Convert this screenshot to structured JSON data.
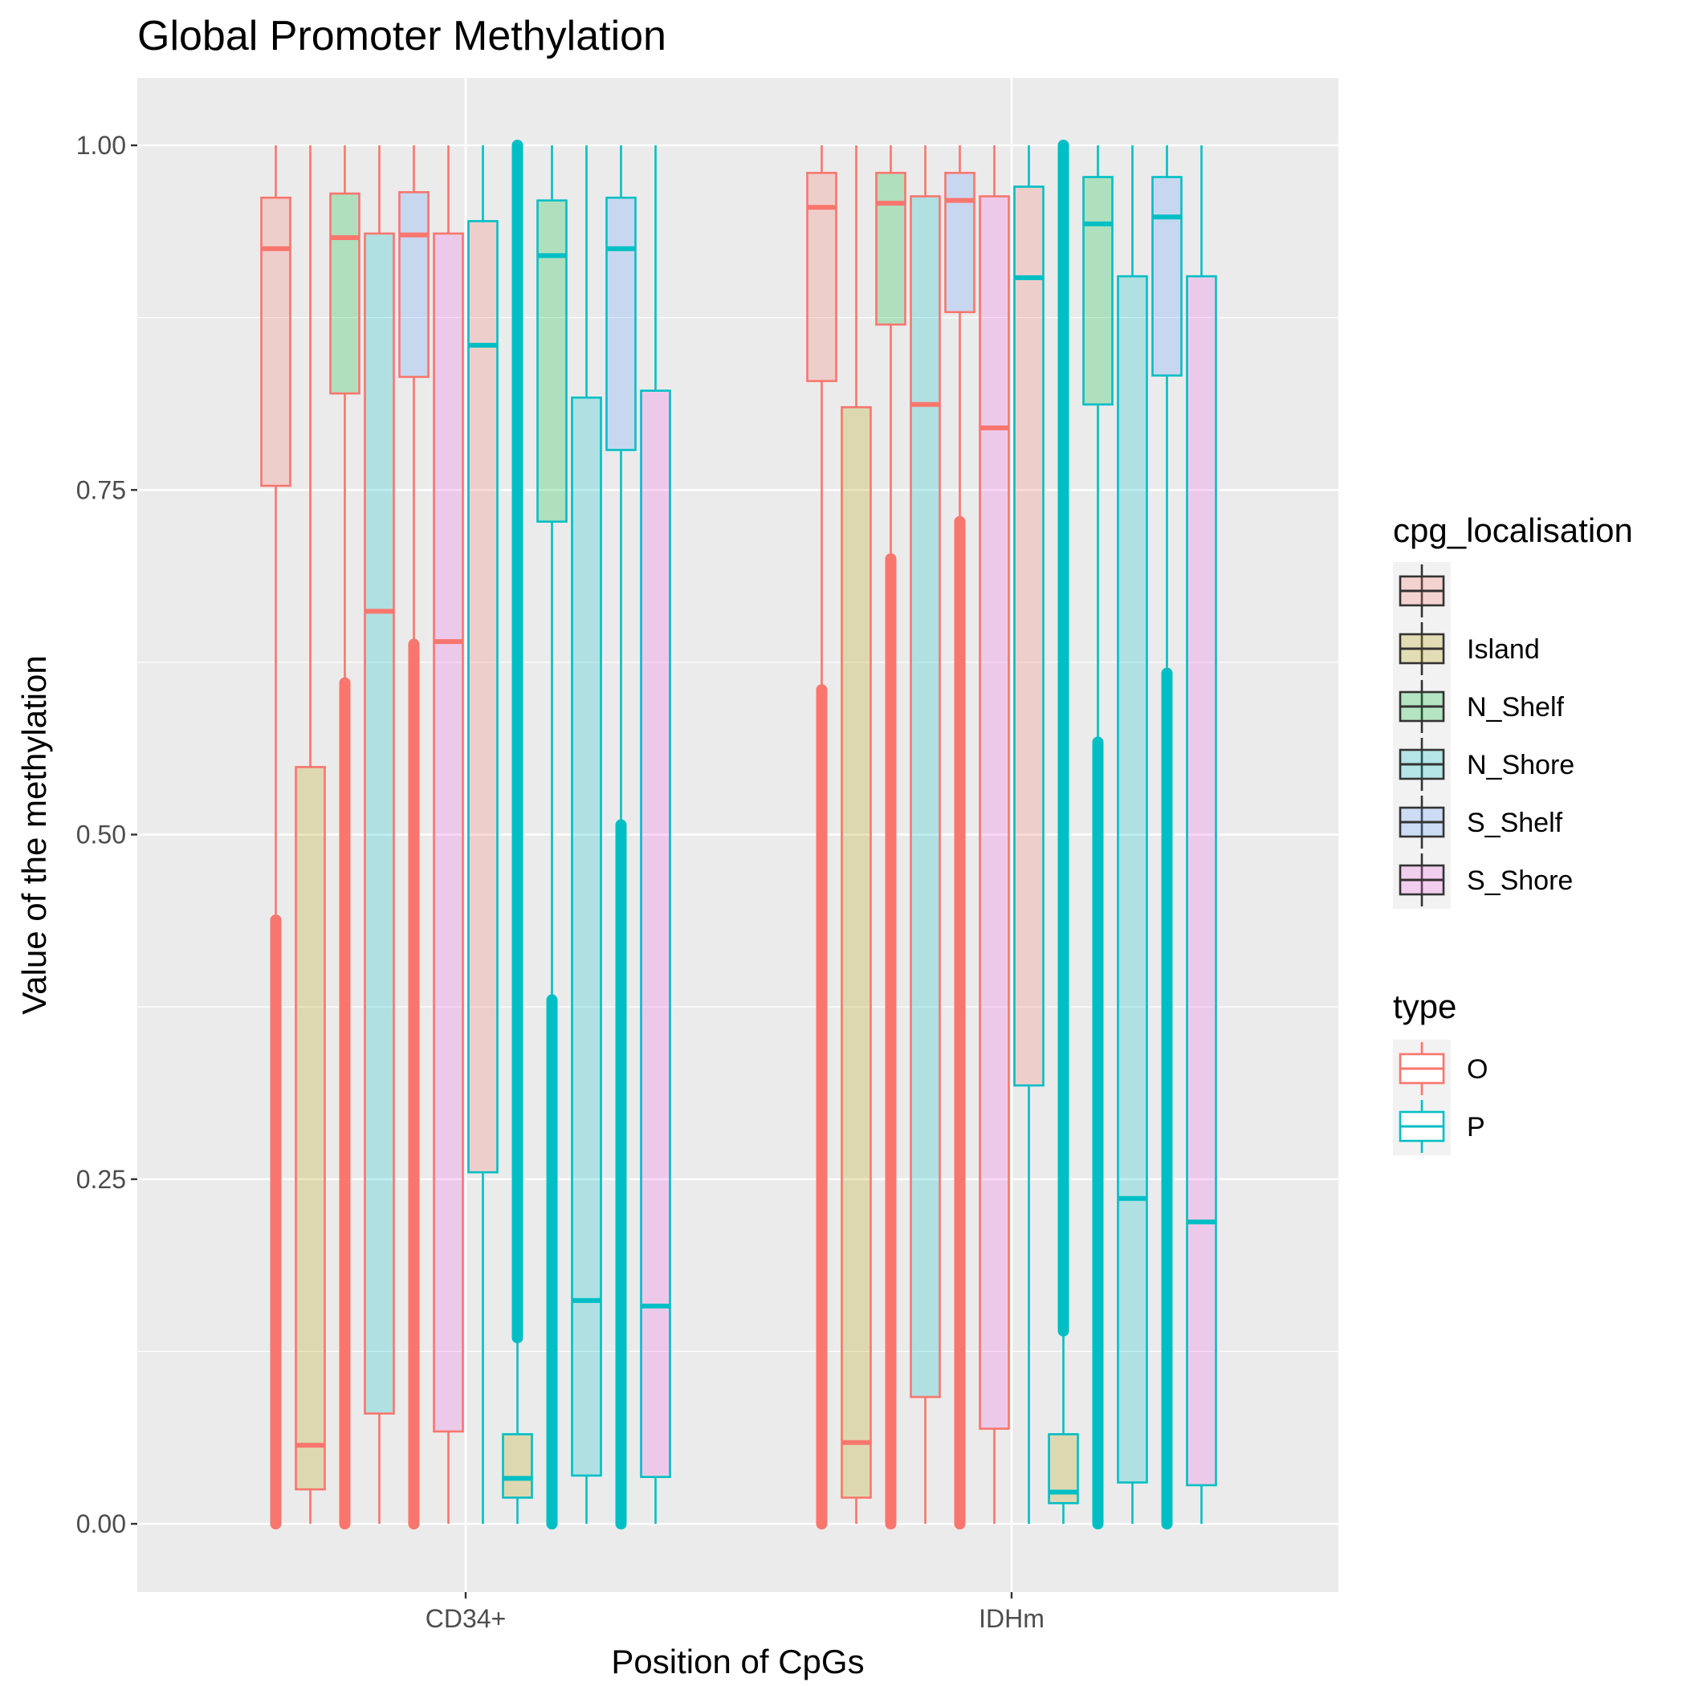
{
  "chart_data": {
    "type": "boxplot",
    "title": "Global Promoter Methylation",
    "xlabel": "Position of CpGs",
    "ylabel": "Value of the methylation",
    "categories": [
      "CD34+",
      "IDHm"
    ],
    "ylim": [
      -0.05,
      1.05
    ],
    "yticks": [
      "0.00",
      "0.25",
      "0.50",
      "0.75",
      "1.00"
    ],
    "yticks_values": [
      0,
      0.25,
      0.5,
      0.75,
      1.0
    ],
    "grid": true,
    "legend_position": "right",
    "legends": [
      {
        "title": "cpg_localisation",
        "entries": [
          {
            "label": "",
            "fill": "#F8766D"
          },
          {
            "label": "Island",
            "fill": "#B79F00"
          },
          {
            "label": "N_Shelf",
            "fill": "#00BA38"
          },
          {
            "label": "N_Shore",
            "fill": "#00BFC4"
          },
          {
            "label": "S_Shelf",
            "fill": "#619CFF"
          },
          {
            "label": "S_Shore",
            "fill": "#F564E3"
          }
        ]
      },
      {
        "title": "type",
        "entries": [
          {
            "label": "O",
            "color": "#F8766D"
          },
          {
            "label": "P",
            "color": "#00BFC4"
          }
        ]
      }
    ],
    "boxes": [
      {
        "category": "CD34+",
        "loc": "",
        "type": "O",
        "whisker_low": 0.0,
        "q1": 0.753,
        "median": 0.925,
        "q3": 0.962,
        "whisker_high": 1.0,
        "outliers_low": 0.0,
        "outliers_high": 0.438
      },
      {
        "category": "CD34+",
        "loc": "Island",
        "type": "O",
        "whisker_low": 0.0,
        "q1": 0.025,
        "median": 0.057,
        "q3": 0.549,
        "whisker_high": 1.0
      },
      {
        "category": "CD34+",
        "loc": "N_Shelf",
        "type": "O",
        "whisker_low": 0.0,
        "q1": 0.82,
        "median": 0.933,
        "q3": 0.965,
        "whisker_high": 1.0,
        "outliers_low": 0.0,
        "outliers_high": 0.61
      },
      {
        "category": "CD34+",
        "loc": "N_Shore",
        "type": "O",
        "whisker_low": 0.0,
        "q1": 0.08,
        "median": 0.662,
        "q3": 0.936,
        "whisker_high": 1.0
      },
      {
        "category": "CD34+",
        "loc": "S_Shelf",
        "type": "O",
        "whisker_low": 0.0,
        "q1": 0.832,
        "median": 0.935,
        "q3": 0.966,
        "whisker_high": 1.0,
        "outliers_low": 0.0,
        "outliers_high": 0.638
      },
      {
        "category": "CD34+",
        "loc": "S_Shore",
        "type": "O",
        "whisker_low": 0.0,
        "q1": 0.067,
        "median": 0.64,
        "q3": 0.936,
        "whisker_high": 1.0
      },
      {
        "category": "CD34+",
        "loc": "",
        "type": "P",
        "whisker_low": 0.0,
        "q1": 0.255,
        "median": 0.855,
        "q3": 0.945,
        "whisker_high": 1.0
      },
      {
        "category": "CD34+",
        "loc": "Island",
        "type": "P",
        "whisker_low": 0.0,
        "q1": 0.019,
        "median": 0.033,
        "q3": 0.065,
        "whisker_high": 0.135,
        "outliers_low": 0.135,
        "outliers_high": 1.0
      },
      {
        "category": "CD34+",
        "loc": "N_Shelf",
        "type": "P",
        "whisker_low": 0.0,
        "q1": 0.727,
        "median": 0.92,
        "q3": 0.96,
        "whisker_high": 1.0,
        "outliers_low": 0.0,
        "outliers_high": 0.38
      },
      {
        "category": "CD34+",
        "loc": "N_Shore",
        "type": "P",
        "whisker_low": 0.0,
        "q1": 0.035,
        "median": 0.162,
        "q3": 0.817,
        "whisker_high": 1.0
      },
      {
        "category": "CD34+",
        "loc": "S_Shelf",
        "type": "P",
        "whisker_low": 0.0,
        "q1": 0.779,
        "median": 0.925,
        "q3": 0.962,
        "whisker_high": 1.0,
        "outliers_low": 0.0,
        "outliers_high": 0.507
      },
      {
        "category": "CD34+",
        "loc": "S_Shore",
        "type": "P",
        "whisker_low": 0.0,
        "q1": 0.034,
        "median": 0.158,
        "q3": 0.822,
        "whisker_high": 1.0
      },
      {
        "category": "IDHm",
        "loc": "",
        "type": "O",
        "whisker_low": 0.0,
        "q1": 0.829,
        "median": 0.955,
        "q3": 0.98,
        "whisker_high": 1.0,
        "outliers_low": 0.0,
        "outliers_high": 0.605
      },
      {
        "category": "IDHm",
        "loc": "Island",
        "type": "O",
        "whisker_low": 0.0,
        "q1": 0.019,
        "median": 0.059,
        "q3": 0.81,
        "whisker_high": 1.0
      },
      {
        "category": "IDHm",
        "loc": "N_Shelf",
        "type": "O",
        "whisker_low": 0.0,
        "q1": 0.87,
        "median": 0.958,
        "q3": 0.98,
        "whisker_high": 1.0,
        "outliers_low": 0.0,
        "outliers_high": 0.7
      },
      {
        "category": "IDHm",
        "loc": "N_Shore",
        "type": "O",
        "whisker_low": 0.0,
        "q1": 0.092,
        "median": 0.812,
        "q3": 0.963,
        "whisker_high": 1.0
      },
      {
        "category": "IDHm",
        "loc": "S_Shelf",
        "type": "O",
        "whisker_low": 0.0,
        "q1": 0.879,
        "median": 0.96,
        "q3": 0.98,
        "whisker_high": 1.0,
        "outliers_low": 0.0,
        "outliers_high": 0.727
      },
      {
        "category": "IDHm",
        "loc": "S_Shore",
        "type": "O",
        "whisker_low": 0.0,
        "q1": 0.069,
        "median": 0.795,
        "q3": 0.963,
        "whisker_high": 1.0
      },
      {
        "category": "IDHm",
        "loc": "",
        "type": "P",
        "whisker_low": 0.0,
        "q1": 0.318,
        "median": 0.904,
        "q3": 0.97,
        "whisker_high": 1.0
      },
      {
        "category": "IDHm",
        "loc": "Island",
        "type": "P",
        "whisker_low": 0.0,
        "q1": 0.015,
        "median": 0.023,
        "q3": 0.065,
        "whisker_high": 0.14,
        "outliers_low": 0.14,
        "outliers_high": 1.0
      },
      {
        "category": "IDHm",
        "loc": "N_Shelf",
        "type": "P",
        "whisker_low": 0.0,
        "q1": 0.812,
        "median": 0.943,
        "q3": 0.977,
        "whisker_high": 1.0,
        "outliers_low": 0.0,
        "outliers_high": 0.567
      },
      {
        "category": "IDHm",
        "loc": "N_Shore",
        "type": "P",
        "whisker_low": 0.0,
        "q1": 0.03,
        "median": 0.236,
        "q3": 0.905,
        "whisker_high": 1.0
      },
      {
        "category": "IDHm",
        "loc": "S_Shelf",
        "type": "P",
        "whisker_low": 0.0,
        "q1": 0.833,
        "median": 0.948,
        "q3": 0.977,
        "whisker_high": 1.0,
        "outliers_low": 0.0,
        "outliers_high": 0.617
      },
      {
        "category": "IDHm",
        "loc": "S_Shore",
        "type": "P",
        "whisker_low": 0.0,
        "q1": 0.028,
        "median": 0.219,
        "q3": 0.905,
        "whisker_high": 1.0
      }
    ]
  }
}
